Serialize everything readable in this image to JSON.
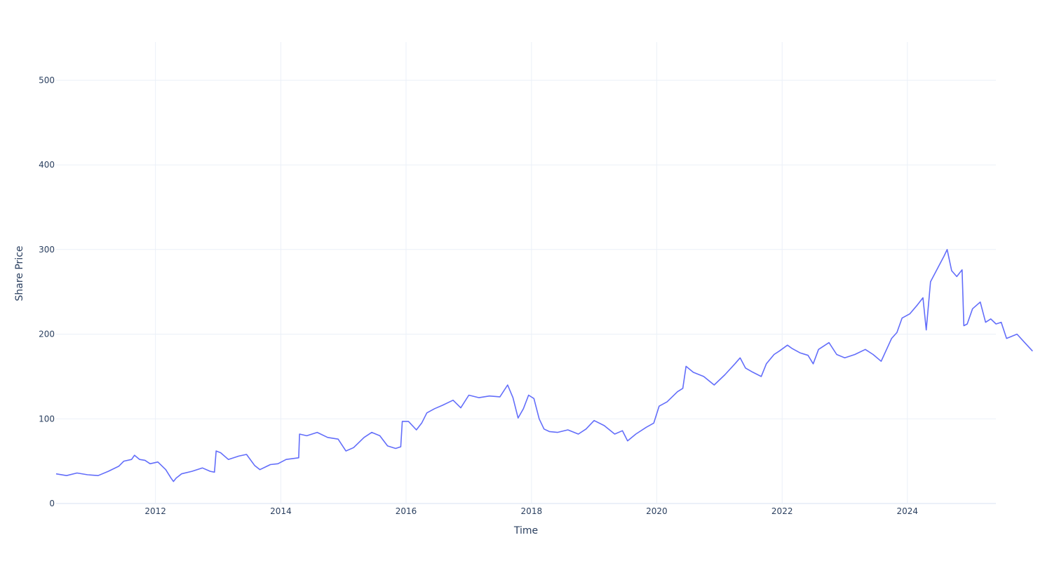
{
  "chart_data": {
    "type": "line",
    "title": "",
    "xlabel": "Time",
    "ylabel": "Share Price",
    "grid": true,
    "legend": "none",
    "x_tick_labels": [
      "2012",
      "2014",
      "2016",
      "2018",
      "2020",
      "2022",
      "2024"
    ],
    "y_tick_labels": [
      "0",
      "100",
      "200",
      "300",
      "400",
      "500"
    ],
    "xlim": [
      "2010-06-01",
      "2025-05-31"
    ],
    "ylim": [
      0,
      545
    ],
    "series": [
      {
        "color": "#636efa",
        "points": [
          [
            "2010-06-01",
            35
          ],
          [
            "2010-08-01",
            33
          ],
          [
            "2010-10-01",
            36
          ],
          [
            "2010-12-01",
            34
          ],
          [
            "2011-02-01",
            33
          ],
          [
            "2011-04-01",
            38
          ],
          [
            "2011-06-01",
            44
          ],
          [
            "2011-07-01",
            50
          ],
          [
            "2011-08-15",
            52
          ],
          [
            "2011-09-01",
            57
          ],
          [
            "2011-10-01",
            52
          ],
          [
            "2011-11-01",
            51
          ],
          [
            "2011-12-01",
            47
          ],
          [
            "2012-01-15",
            49
          ],
          [
            "2012-03-01",
            40
          ],
          [
            "2012-04-01",
            30
          ],
          [
            "2012-04-15",
            26
          ],
          [
            "2012-05-01",
            30
          ],
          [
            "2012-06-01",
            35
          ],
          [
            "2012-08-01",
            38
          ],
          [
            "2012-10-01",
            42
          ],
          [
            "2012-11-15",
            38
          ],
          [
            "2012-12-10",
            37
          ],
          [
            "2012-12-20",
            62
          ],
          [
            "2013-01-15",
            60
          ],
          [
            "2013-03-01",
            52
          ],
          [
            "2013-05-01",
            56
          ],
          [
            "2013-06-15",
            58
          ],
          [
            "2013-08-01",
            45
          ],
          [
            "2013-09-01",
            40
          ],
          [
            "2013-11-01",
            46
          ],
          [
            "2013-12-15",
            47
          ],
          [
            "2014-02-01",
            52
          ],
          [
            "2014-04-15",
            54
          ],
          [
            "2014-04-20",
            82
          ],
          [
            "2014-06-01",
            80
          ],
          [
            "2014-08-01",
            84
          ],
          [
            "2014-10-01",
            78
          ],
          [
            "2014-12-01",
            76
          ],
          [
            "2015-01-15",
            62
          ],
          [
            "2015-03-01",
            66
          ],
          [
            "2015-05-01",
            78
          ],
          [
            "2015-06-15",
            84
          ],
          [
            "2015-08-01",
            80
          ],
          [
            "2015-09-15",
            68
          ],
          [
            "2015-11-01",
            65
          ],
          [
            "2015-12-01",
            67
          ],
          [
            "2015-12-10",
            97
          ],
          [
            "2016-01-15",
            97
          ],
          [
            "2016-03-01",
            87
          ],
          [
            "2016-04-01",
            95
          ],
          [
            "2016-05-01",
            107
          ],
          [
            "2016-06-15",
            112
          ],
          [
            "2016-08-01",
            116
          ],
          [
            "2016-10-01",
            122
          ],
          [
            "2016-11-15",
            113
          ],
          [
            "2017-01-01",
            128
          ],
          [
            "2017-03-01",
            125
          ],
          [
            "2017-05-01",
            127
          ],
          [
            "2017-07-01",
            126
          ],
          [
            "2017-08-15",
            140
          ],
          [
            "2017-09-15",
            125
          ],
          [
            "2017-10-15",
            101
          ],
          [
            "2017-11-15",
            112
          ],
          [
            "2017-12-15",
            128
          ],
          [
            "2018-01-15",
            124
          ],
          [
            "2018-02-15",
            100
          ],
          [
            "2018-03-15",
            88
          ],
          [
            "2018-04-15",
            85
          ],
          [
            "2018-06-01",
            84
          ],
          [
            "2018-08-01",
            87
          ],
          [
            "2018-10-01",
            82
          ],
          [
            "2018-11-15",
            88
          ],
          [
            "2019-01-01",
            98
          ],
          [
            "2019-03-01",
            92
          ],
          [
            "2019-05-01",
            82
          ],
          [
            "2019-06-15",
            86
          ],
          [
            "2019-07-15",
            74
          ],
          [
            "2019-09-01",
            82
          ],
          [
            "2019-11-01",
            90
          ],
          [
            "2019-12-15",
            95
          ],
          [
            "2020-01-15",
            115
          ],
          [
            "2020-03-01",
            120
          ],
          [
            "2020-05-01",
            132
          ],
          [
            "2020-06-01",
            136
          ],
          [
            "2020-06-20",
            162
          ],
          [
            "2020-08-01",
            155
          ],
          [
            "2020-10-01",
            150
          ],
          [
            "2020-12-01",
            140
          ],
          [
            "2021-02-01",
            152
          ],
          [
            "2021-04-01",
            165
          ],
          [
            "2021-05-01",
            172
          ],
          [
            "2021-06-01",
            160
          ],
          [
            "2021-07-15",
            155
          ],
          [
            "2021-09-01",
            150
          ],
          [
            "2021-10-01",
            165
          ],
          [
            "2021-11-15",
            176
          ],
          [
            "2021-12-15",
            180
          ],
          [
            "2022-02-01",
            187
          ],
          [
            "2022-03-01",
            183
          ],
          [
            "2022-04-15",
            178
          ],
          [
            "2022-06-01",
            175
          ],
          [
            "2022-07-01",
            165
          ],
          [
            "2022-08-01",
            182
          ],
          [
            "2022-10-01",
            190
          ],
          [
            "2022-11-15",
            176
          ],
          [
            "2023-01-01",
            172
          ],
          [
            "2023-03-01",
            176
          ],
          [
            "2023-05-01",
            182
          ],
          [
            "2023-06-15",
            176
          ],
          [
            "2023-08-01",
            168
          ],
          [
            "2023-10-01",
            195
          ],
          [
            "2023-11-01",
            202
          ],
          [
            "2023-12-01",
            219
          ],
          [
            "2024-01-15",
            224
          ],
          [
            "2024-03-01",
            235
          ],
          [
            "2024-04-01",
            243
          ],
          [
            "2024-04-20",
            205
          ],
          [
            "2024-05-15",
            262
          ],
          [
            "2024-07-01",
            280
          ],
          [
            "2024-08-01",
            292
          ],
          [
            "2024-08-20",
            300
          ],
          [
            "2024-09-15",
            275
          ],
          [
            "2024-10-15",
            268
          ],
          [
            "2024-11-15",
            276
          ],
          [
            "2024-11-25",
            210
          ],
          [
            "2024-12-15",
            212
          ],
          [
            "2025-01-15",
            230
          ],
          [
            "2025-03-01",
            238
          ],
          [
            "2025-04-01",
            214
          ],
          [
            "2025-05-01",
            218
          ],
          [
            "2025-06-01",
            212
          ],
          [
            "2025-07-01",
            214
          ],
          [
            "2025-08-01",
            195
          ],
          [
            "2025-10-01",
            200
          ],
          [
            "2025-11-15",
            190
          ],
          [
            "2025-12-31",
            180
          ]
        ]
      }
    ]
  }
}
